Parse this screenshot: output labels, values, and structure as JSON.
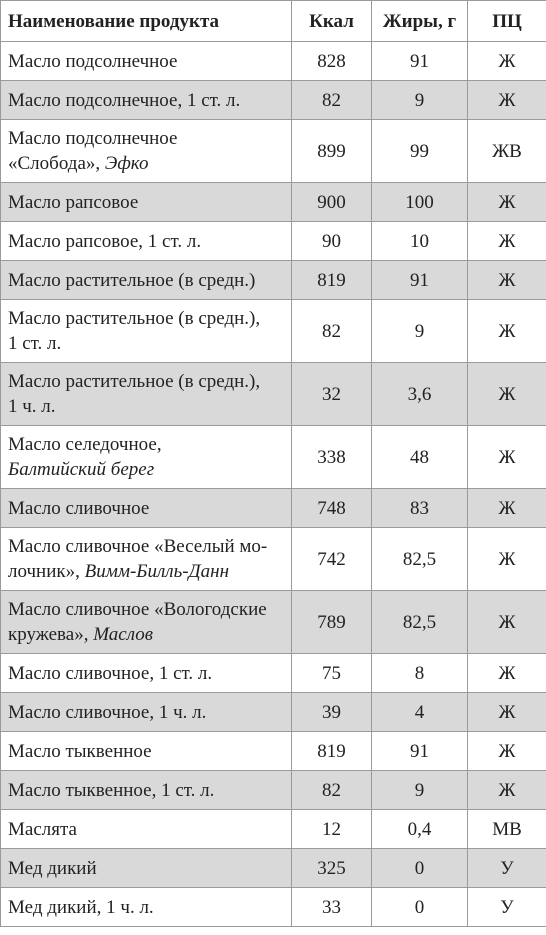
{
  "headers": [
    "Наименование продукта",
    "Ккал",
    "Жиры, г",
    "ПЦ"
  ],
  "rows": [
    {
      "line1": "Масло подсолнечное",
      "line2": "",
      "brand": "",
      "kcal": "828",
      "fat": "91",
      "pc": "Ж"
    },
    {
      "line1": "Масло подсолнечное, 1 ст. л.",
      "line2": "",
      "brand": "",
      "kcal": "82",
      "fat": "9",
      "pc": "Ж"
    },
    {
      "line1": "Масло подсолнечное",
      "line2": "«Слобода», ",
      "brand": "Эфко",
      "kcal": "899",
      "fat": "99",
      "pc": "ЖВ"
    },
    {
      "line1": "Масло рапсовое",
      "line2": "",
      "brand": "",
      "kcal": "900",
      "fat": "100",
      "pc": "Ж"
    },
    {
      "line1": "Масло рапсовое, 1 ст. л.",
      "line2": "",
      "brand": "",
      "kcal": "90",
      "fat": "10",
      "pc": "Ж"
    },
    {
      "line1": "Масло растительное (в средн.)",
      "line2": "",
      "brand": "",
      "kcal": "819",
      "fat": "91",
      "pc": "Ж"
    },
    {
      "line1": "Масло растительное (в средн.),",
      "line2": "1 ст. л.",
      "brand": "",
      "kcal": "82",
      "fat": "9",
      "pc": "Ж"
    },
    {
      "line1": "Масло растительное (в средн.),",
      "line2": "1 ч. л.",
      "brand": "",
      "kcal": "32",
      "fat": "3,6",
      "pc": "Ж"
    },
    {
      "line1": "Масло селедочное,",
      "line2": "",
      "brand": "Балтийский берег",
      "kcal": "338",
      "fat": "48",
      "pc": "Ж"
    },
    {
      "line1": "Масло сливочное",
      "line2": "",
      "brand": "",
      "kcal": "748",
      "fat": "83",
      "pc": "Ж"
    },
    {
      "line1": "Масло сливочное «Веселый мо-",
      "line2": "лочник», ",
      "brand": "Вимм-Билль-Данн",
      "kcal": "742",
      "fat": "82,5",
      "pc": "Ж"
    },
    {
      "line1": "Масло сливочное «Вологодские",
      "line2": "кружева», ",
      "brand": "Маслов",
      "kcal": "789",
      "fat": "82,5",
      "pc": "Ж"
    },
    {
      "line1": "Масло сливочное, 1 ст. л.",
      "line2": "",
      "brand": "",
      "kcal": "75",
      "fat": "8",
      "pc": "Ж"
    },
    {
      "line1": "Масло сливочное, 1 ч. л.",
      "line2": "",
      "brand": "",
      "kcal": "39",
      "fat": "4",
      "pc": "Ж"
    },
    {
      "line1": "Масло тыквенное",
      "line2": "",
      "brand": "",
      "kcal": "819",
      "fat": "91",
      "pc": "Ж"
    },
    {
      "line1": "Масло тыквенное, 1 ст. л.",
      "line2": "",
      "brand": "",
      "kcal": "82",
      "fat": "9",
      "pc": "Ж"
    },
    {
      "line1": "Маслята",
      "line2": "",
      "brand": "",
      "kcal": "12",
      "fat": "0,4",
      "pc": "МВ"
    },
    {
      "line1": "Мед дикий",
      "line2": "",
      "brand": "",
      "kcal": "325",
      "fat": "0",
      "pc": "У"
    },
    {
      "line1": "Мед дикий, 1 ч. л.",
      "line2": "",
      "brand": "",
      "kcal": "33",
      "fat": "0",
      "pc": "У"
    }
  ],
  "style": {
    "shaded_row_color": "#d9d9d9",
    "border_color": "#9a9a9a"
  }
}
